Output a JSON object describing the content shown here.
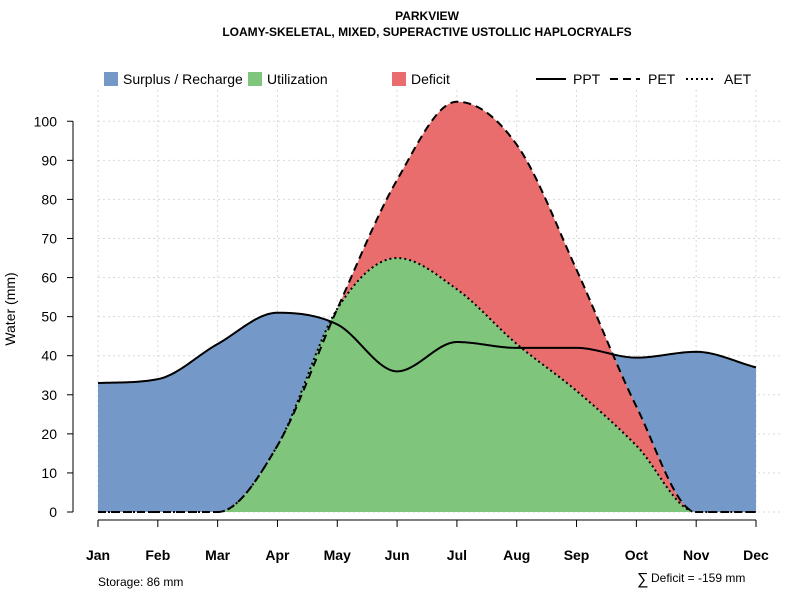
{
  "chart_data": {
    "type": "area",
    "title": "PARKVIEW",
    "subtitle": "LOAMY-SKELETAL, MIXED, SUPERACTIVE USTOLLIC HAPLOCRYALFS",
    "ylabel": "Water (mm)",
    "xlabel": "",
    "ylim": [
      0,
      108
    ],
    "yticks": [
      0,
      10,
      20,
      30,
      40,
      50,
      60,
      70,
      80,
      90,
      100
    ],
    "categories": [
      "Jan",
      "Feb",
      "Mar",
      "Apr",
      "May",
      "Jun",
      "Jul",
      "Aug",
      "Sep",
      "Oct",
      "Nov",
      "Dec"
    ],
    "grid": true,
    "legend_position": "top",
    "series": [
      {
        "name": "PPT",
        "line_style": "solid",
        "values": [
          33,
          34,
          43,
          51,
          48,
          36,
          43.5,
          42,
          42,
          39.5,
          41,
          37
        ]
      },
      {
        "name": "PET",
        "line_style": "dashed",
        "values": [
          0,
          0,
          0,
          17,
          52,
          85,
          105,
          94,
          62,
          27,
          0,
          0
        ]
      },
      {
        "name": "AET",
        "line_style": "dotted",
        "values": [
          0,
          0,
          0,
          17,
          52,
          65,
          57,
          43,
          31,
          17,
          0,
          0
        ]
      }
    ],
    "areas": [
      {
        "name": "Surplus / Recharge",
        "color": "#7499c8"
      },
      {
        "name": "Utilization",
        "color": "#7fc57c"
      },
      {
        "name": "Deficit",
        "color": "#ea6d6d"
      }
    ],
    "legend": {
      "surplus": "Surplus / Recharge",
      "utilization": "Utilization",
      "deficit": "Deficit",
      "ppt": "PPT",
      "pet": "PET",
      "aet": "AET"
    },
    "annotations": {
      "storage": "Storage: 86 mm",
      "deficit_symbol": "∑",
      "deficit": "Deficit = -159 mm"
    }
  }
}
